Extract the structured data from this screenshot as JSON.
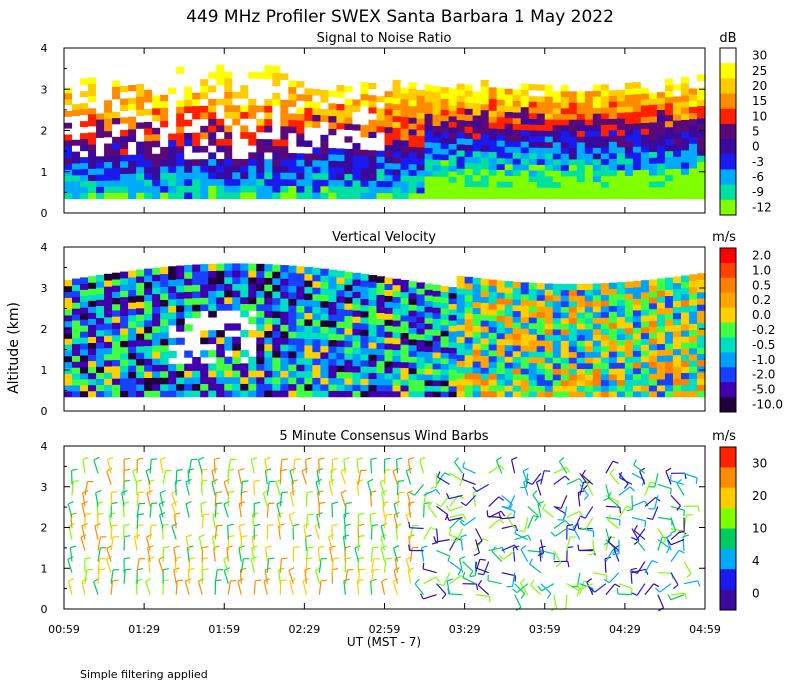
{
  "figure": {
    "title": "449 MHz Profiler SWEX Santa Barbara  1 May 2022",
    "ylabel": "Altitude (km)",
    "xlabel": "UT  (MST - 7)",
    "footnote": "Simple filtering applied"
  },
  "chart_data": [
    {
      "type": "heatmap",
      "title": "Signal to Noise Ratio",
      "colorbar_unit": "dB",
      "x_ticks": [
        "00:59",
        "01:29",
        "01:59",
        "02:29",
        "02:59",
        "03:29",
        "03:59",
        "04:29",
        "04:59"
      ],
      "y_ticks": [
        "0",
        "1",
        "2",
        "3",
        "4"
      ],
      "ylim": [
        0,
        4
      ],
      "colorbar": {
        "labels": [
          "30",
          "25",
          "20",
          "15",
          "10",
          "5",
          "0",
          "-3",
          "-6",
          "-9",
          "-12"
        ],
        "colors": [
          "#ffffff",
          "#ffff00",
          "#ffcc00",
          "#ff8c00",
          "#ff2000",
          "#5a0a78",
          "#3a0a9c",
          "#1a1af0",
          "#00aaff",
          "#00e0a0",
          "#80ff00"
        ]
      }
    },
    {
      "type": "heatmap",
      "title": "Vertical Velocity",
      "colorbar_unit": "m/s",
      "x_ticks": [
        "00:59",
        "01:29",
        "01:59",
        "02:29",
        "02:59",
        "03:29",
        "03:59",
        "04:29",
        "04:59"
      ],
      "y_ticks": [
        "0",
        "1",
        "2",
        "3",
        "4"
      ],
      "ylim": [
        0,
        4
      ],
      "colorbar": {
        "labels": [
          "2.0",
          "1.0",
          "0.5",
          "0.2",
          "0.0",
          "-0.2",
          "-0.5",
          "-1.0",
          "-2.0",
          "-5.0",
          "-10.0"
        ],
        "colors": [
          "#ff0000",
          "#ff4000",
          "#ff8000",
          "#ffa500",
          "#ffd000",
          "#40ff40",
          "#00e0c0",
          "#00a0ff",
          "#1a40ff",
          "#4000b0",
          "#20003a"
        ]
      }
    },
    {
      "type": "wind-barbs",
      "title": "5 Minute Consensus Wind Barbs",
      "colorbar_unit": "m/s",
      "x_ticks": [
        "00:59",
        "01:29",
        "01:59",
        "02:29",
        "02:59",
        "03:29",
        "03:59",
        "04:29",
        "04:59"
      ],
      "y_ticks": [
        "0",
        "1",
        "2",
        "3",
        "4"
      ],
      "ylim": [
        0,
        4
      ],
      "colorbar": {
        "labels": [
          "30",
          "20",
          "10",
          "4",
          "0"
        ],
        "colors": [
          "#ff2000",
          "#ff8c00",
          "#ffcc00",
          "#80ff00",
          "#00cc60",
          "#00aaff",
          "#1a1af0",
          "#3a0a9c"
        ]
      }
    }
  ]
}
